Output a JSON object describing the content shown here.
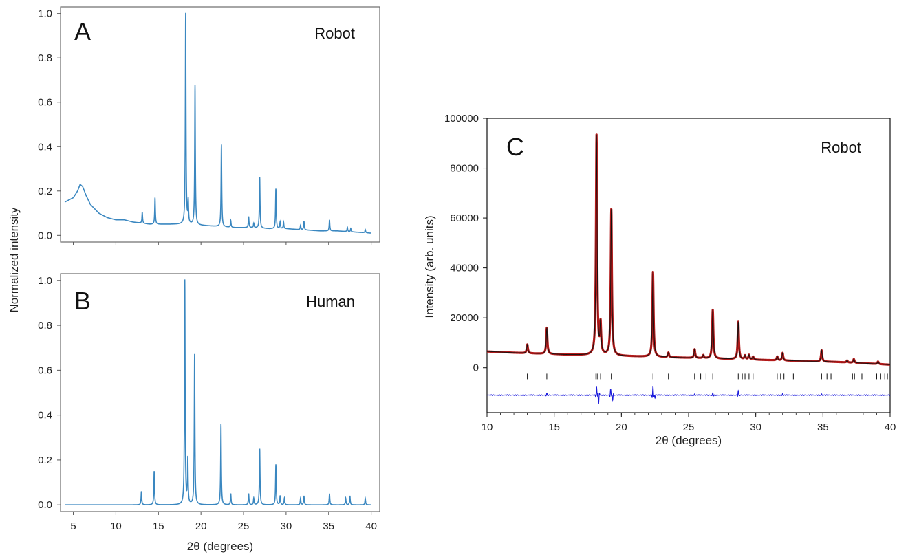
{
  "chart_data": [
    {
      "type": "line",
      "panel_letter": "A",
      "panel_tag": "Robot",
      "xlabel": "",
      "ylabel": "",
      "xlim": [
        3.5,
        41
      ],
      "ylim": [
        -0.03,
        1.03
      ],
      "xticks": [
        5,
        10,
        15,
        20,
        25,
        30,
        35,
        40
      ],
      "show_x_tick_labels": false,
      "yticks": [
        "0.0",
        "0.2",
        "0.4",
        "0.6",
        "0.8",
        "1.0"
      ],
      "line_color": "#3a87c0",
      "background": {
        "x": [
          4,
          5,
          5.5,
          5.8,
          6.1,
          6.5,
          7,
          8,
          9,
          10,
          11,
          12,
          14,
          16,
          18,
          20,
          22,
          24,
          26,
          28,
          30,
          32,
          34,
          36,
          38,
          40
        ],
        "y": [
          0.15,
          0.17,
          0.2,
          0.23,
          0.22,
          0.18,
          0.14,
          0.1,
          0.08,
          0.07,
          0.07,
          0.06,
          0.05,
          0.05,
          0.05,
          0.045,
          0.04,
          0.035,
          0.035,
          0.03,
          0.03,
          0.025,
          0.02,
          0.02,
          0.015,
          0.01
        ]
      },
      "peaks": [
        {
          "x": 13.1,
          "h": 0.05
        },
        {
          "x": 14.6,
          "h": 0.12
        },
        {
          "x": 18.2,
          "h": 0.95
        },
        {
          "x": 18.5,
          "h": 0.1
        },
        {
          "x": 19.3,
          "h": 0.63
        },
        {
          "x": 22.4,
          "h": 0.37
        },
        {
          "x": 23.5,
          "h": 0.03
        },
        {
          "x": 25.6,
          "h": 0.05
        },
        {
          "x": 26.2,
          "h": 0.02
        },
        {
          "x": 26.9,
          "h": 0.23
        },
        {
          "x": 28.8,
          "h": 0.18
        },
        {
          "x": 29.3,
          "h": 0.03
        },
        {
          "x": 29.7,
          "h": 0.03
        },
        {
          "x": 31.7,
          "h": 0.02
        },
        {
          "x": 32.1,
          "h": 0.04
        },
        {
          "x": 35.1,
          "h": 0.05
        },
        {
          "x": 37.2,
          "h": 0.02
        },
        {
          "x": 37.6,
          "h": 0.015
        },
        {
          "x": 39.3,
          "h": 0.015
        }
      ]
    },
    {
      "type": "line",
      "panel_letter": "B",
      "panel_tag": "Human",
      "xlabel": "2θ (degrees)",
      "ylabel": "",
      "shared_ylabel": "Normalized intensity",
      "xlim": [
        3.5,
        41
      ],
      "ylim": [
        -0.03,
        1.03
      ],
      "xticks": [
        "5",
        "10",
        "15",
        "20",
        "25",
        "30",
        "35",
        "40"
      ],
      "show_x_tick_labels": true,
      "yticks": [
        "0.0",
        "0.2",
        "0.4",
        "0.6",
        "0.8",
        "1.0"
      ],
      "line_color": "#3a87c0",
      "background": {
        "x": [
          4,
          40
        ],
        "y": [
          0,
          0
        ]
      },
      "peaks": [
        {
          "x": 13.0,
          "h": 0.06
        },
        {
          "x": 14.5,
          "h": 0.15
        },
        {
          "x": 18.1,
          "h": 1.0
        },
        {
          "x": 18.45,
          "h": 0.2
        },
        {
          "x": 19.25,
          "h": 0.67
        },
        {
          "x": 22.35,
          "h": 0.36
        },
        {
          "x": 23.5,
          "h": 0.05
        },
        {
          "x": 25.6,
          "h": 0.05
        },
        {
          "x": 26.2,
          "h": 0.03
        },
        {
          "x": 26.9,
          "h": 0.25
        },
        {
          "x": 28.8,
          "h": 0.18
        },
        {
          "x": 29.3,
          "h": 0.04
        },
        {
          "x": 29.8,
          "h": 0.03
        },
        {
          "x": 31.7,
          "h": 0.03
        },
        {
          "x": 32.1,
          "h": 0.04
        },
        {
          "x": 35.1,
          "h": 0.05
        },
        {
          "x": 37.0,
          "h": 0.03
        },
        {
          "x": 37.5,
          "h": 0.04
        },
        {
          "x": 39.3,
          "h": 0.03
        }
      ]
    },
    {
      "type": "line",
      "panel_letter": "C",
      "panel_tag": "Robot",
      "xlabel": "2θ (degrees)",
      "ylabel": "Intensity (arb. units)",
      "xlim": [
        10,
        40
      ],
      "ylim": [
        -18000,
        100000
      ],
      "xticks": [
        "10",
        "15",
        "20",
        "25",
        "30",
        "35",
        "40"
      ],
      "yticks": [
        "0",
        "20000",
        "40000",
        "60000",
        "80000",
        "100000"
      ],
      "observed_color": "#b21a1a",
      "calculated_color": "#111111",
      "difference_color": "#1a1adb",
      "difference_offset": -11000,
      "background": {
        "x": [
          10,
          12,
          14,
          16,
          18,
          20,
          22,
          24,
          26,
          28,
          30,
          32,
          34,
          36,
          38,
          40
        ],
        "y": [
          6500,
          6000,
          5600,
          5200,
          5000,
          4700,
          4400,
          4100,
          3800,
          3500,
          3200,
          2900,
          2600,
          2300,
          1800,
          1200
        ]
      },
      "peaks": [
        {
          "x": 13.0,
          "h": 3500
        },
        {
          "x": 14.45,
          "h": 10500
        },
        {
          "x": 18.15,
          "h": 88000
        },
        {
          "x": 18.45,
          "h": 12000
        },
        {
          "x": 19.25,
          "h": 58500
        },
        {
          "x": 22.35,
          "h": 34000
        },
        {
          "x": 23.5,
          "h": 1800
        },
        {
          "x": 25.45,
          "h": 3500
        },
        {
          "x": 26.1,
          "h": 1200
        },
        {
          "x": 26.8,
          "h": 19500
        },
        {
          "x": 28.7,
          "h": 15000
        },
        {
          "x": 29.2,
          "h": 1500
        },
        {
          "x": 29.5,
          "h": 1800
        },
        {
          "x": 29.8,
          "h": 1200
        },
        {
          "x": 31.6,
          "h": 1500
        },
        {
          "x": 32.0,
          "h": 3000
        },
        {
          "x": 34.9,
          "h": 4500
        },
        {
          "x": 36.8,
          "h": 800
        },
        {
          "x": 37.3,
          "h": 1500
        },
        {
          "x": 39.1,
          "h": 1000
        }
      ],
      "reflection_positions": [
        13.0,
        14.45,
        18.1,
        18.2,
        18.45,
        19.25,
        22.35,
        23.5,
        25.45,
        25.9,
        26.3,
        26.8,
        28.7,
        29.0,
        29.2,
        29.5,
        29.8,
        31.6,
        31.85,
        32.1,
        32.8,
        34.9,
        35.3,
        35.6,
        36.8,
        37.2,
        37.35,
        37.9,
        39.0,
        39.3,
        39.6,
        39.8
      ],
      "difference_spikes": [
        {
          "x": 18.15,
          "h": 3500
        },
        {
          "x": 18.3,
          "h": -3500
        },
        {
          "x": 19.2,
          "h": 2500
        },
        {
          "x": 19.35,
          "h": -2000
        },
        {
          "x": 22.35,
          "h": 3500
        },
        {
          "x": 22.5,
          "h": -1200
        },
        {
          "x": 28.7,
          "h": 1800
        },
        {
          "x": 26.8,
          "h": 800
        },
        {
          "x": 14.45,
          "h": 700
        },
        {
          "x": 32.0,
          "h": 600
        },
        {
          "x": 34.9,
          "h": 500
        },
        {
          "x": 25.45,
          "h": 500
        }
      ]
    }
  ]
}
